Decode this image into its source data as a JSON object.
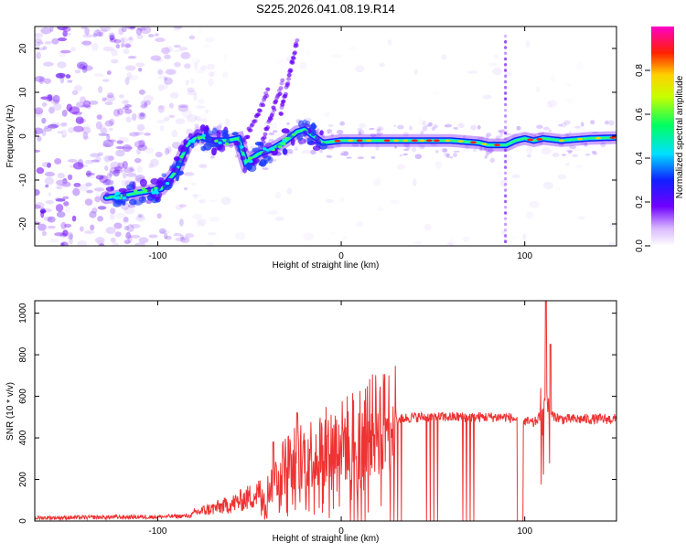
{
  "title": "S225.2026.041.08.19.R14",
  "chart_data": [
    {
      "type": "heatmap",
      "xlabel": "Height of straight line (km)",
      "ylabel": "Frequency (Hz)",
      "xlim": [
        -167,
        150
      ],
      "ylim": [
        -25,
        25
      ],
      "x_ticks": [
        -100,
        0,
        100
      ],
      "y_ticks": [
        -20,
        -10,
        0,
        10,
        20
      ],
      "colorbar": {
        "label": "Normalized spectral amplitude",
        "range": [
          0,
          1
        ],
        "ticks": [
          "0.0",
          "0.2",
          "0.4",
          "0.6",
          "0.8"
        ],
        "tick_values": [
          0,
          0.2,
          0.4,
          0.6,
          0.8
        ]
      },
      "ridge": {
        "x": [
          -128,
          -118,
          -105,
          -98,
          -90,
          -84,
          -78,
          -70,
          -62,
          -56,
          -52,
          -45,
          -38,
          -30,
          -24,
          -20,
          -15,
          -10,
          0,
          20,
          40,
          60,
          75,
          80,
          85,
          90,
          95,
          100,
          105,
          110,
          120,
          135,
          150
        ],
        "y": [
          -14,
          -13.5,
          -12.5,
          -12,
          -8,
          -2,
          0,
          -1,
          -1,
          -0.5,
          -6,
          -4,
          -3,
          -1,
          1,
          1.5,
          0,
          -1.5,
          -1,
          -1,
          -1,
          -1,
          -1.5,
          -2,
          -2,
          -2,
          -1,
          -0.5,
          -1,
          -0.5,
          -1,
          -0.5,
          -0.3
        ]
      }
    },
    {
      "type": "line",
      "xlabel": "Height of straight line (km)",
      "ylabel": "SNR (10 * v/v)",
      "xlim": [
        -167,
        150
      ],
      "ylim": [
        0,
        1060
      ],
      "x_ticks": [
        -100,
        0,
        100
      ],
      "y_ticks": [
        0,
        200,
        400,
        600,
        800,
        1000
      ],
      "color": "#ee3333",
      "envelope": {
        "x": [
          -167,
          -130,
          -100,
          -82,
          -80,
          -60,
          -40,
          -35,
          -30,
          -20,
          -10,
          0,
          10,
          20,
          30,
          40,
          50,
          60,
          70,
          80,
          90,
          95,
          100,
          105,
          108,
          110,
          112,
          115,
          120,
          130,
          150
        ],
        "y": [
          15,
          18,
          20,
          25,
          40,
          80,
          150,
          220,
          280,
          320,
          350,
          380,
          430,
          470,
          490,
          500,
          500,
          500,
          500,
          500,
          500,
          490,
          480,
          470,
          500,
          550,
          600,
          510,
          490,
          490,
          490
        ]
      },
      "peaks": [
        {
          "x": 111.5,
          "y": 1060
        },
        {
          "x": 114,
          "y": 850
        },
        {
          "x": 109,
          "y": 640
        },
        {
          "x": -24,
          "y": 520
        },
        {
          "x": -37,
          "y": 380
        }
      ],
      "dropouts": {
        "x_range": [
          5,
          84
        ],
        "count": 40,
        "gap": [
          96,
          99
        ]
      }
    }
  ]
}
